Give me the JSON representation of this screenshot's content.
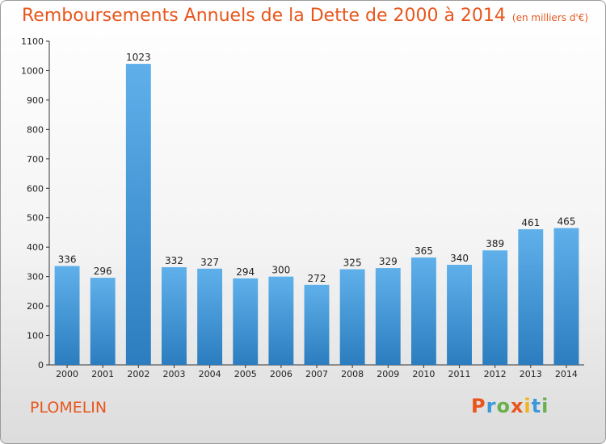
{
  "chart_data": {
    "type": "bar",
    "title": "Remboursements Annuels de la Dette de 2000 à 2014",
    "subtitle": "(en milliers d'€)",
    "categories": [
      "2000",
      "2001",
      "2002",
      "2003",
      "2004",
      "2005",
      "2006",
      "2007",
      "2008",
      "2009",
      "2010",
      "2011",
      "2012",
      "2013",
      "2014"
    ],
    "values": [
      336,
      296,
      1023,
      332,
      327,
      294,
      300,
      272,
      325,
      329,
      365,
      340,
      389,
      461,
      465
    ],
    "ylim": [
      0,
      1100
    ],
    "yticks": [
      0,
      100,
      200,
      300,
      400,
      500,
      600,
      700,
      800,
      900,
      1000,
      1100
    ],
    "grid": false,
    "colors": {
      "bar_top": "#5fb0ea",
      "bar_bottom": "#2b7dbf",
      "title": "#e8561c"
    }
  },
  "footer": {
    "city": "PLOMELIN",
    "logo_letters": [
      {
        "char": "P",
        "color": "#e8561c"
      },
      {
        "char": "r",
        "color": "#3a9ad9"
      },
      {
        "char": "o",
        "color": "#6ab04c"
      },
      {
        "char": "x",
        "color": "#e8561c"
      },
      {
        "char": "i",
        "color": "#f0b323"
      },
      {
        "char": "t",
        "color": "#3a9ad9"
      },
      {
        "char": "i",
        "color": "#6ab04c"
      }
    ]
  }
}
